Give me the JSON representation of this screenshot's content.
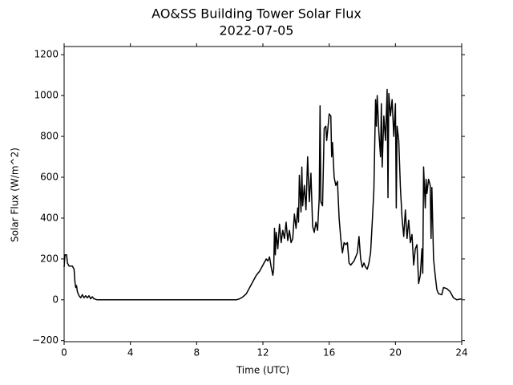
{
  "chart_data": {
    "type": "line",
    "title": "AO&SS Building Tower Solar Flux",
    "subtitle": "2022-07-05",
    "x_label": "Time (UTC)",
    "y_label": "Solar Flux (W/m^2)",
    "color": "#000000",
    "grid": false,
    "xlim": [
      0,
      24
    ],
    "xticks": [
      0,
      4,
      8,
      12,
      16,
      20,
      24
    ],
    "ylim": [
      -205,
      1240
    ],
    "yticks": [
      {
        "value": -200,
        "label": "−200"
      },
      0,
      200,
      400,
      600,
      800,
      1000,
      1200
    ],
    "x": [
      0,
      0.05,
      0.15,
      0.2,
      0.3,
      0.5,
      0.6,
      0.65,
      0.7,
      0.75,
      0.8,
      0.9,
      1.0,
      1.1,
      1.2,
      1.3,
      1.4,
      1.5,
      1.6,
      1.7,
      1.8,
      2.0,
      10.4,
      10.6,
      10.8,
      11.0,
      11.2,
      11.4,
      11.6,
      11.8,
      12.0,
      12.2,
      12.3,
      12.4,
      12.5,
      12.6,
      12.65,
      12.7,
      12.75,
      12.8,
      12.9,
      13.0,
      13.1,
      13.2,
      13.3,
      13.4,
      13.5,
      13.6,
      13.7,
      13.8,
      13.9,
      14.0,
      14.1,
      14.15,
      14.2,
      14.3,
      14.35,
      14.4,
      14.5,
      14.6,
      14.7,
      14.8,
      14.9,
      15.0,
      15.1,
      15.2,
      15.3,
      15.4,
      15.45,
      15.5,
      15.6,
      15.7,
      15.8,
      15.85,
      15.9,
      16.0,
      16.1,
      16.15,
      16.2,
      16.3,
      16.4,
      16.5,
      16.6,
      16.7,
      16.8,
      16.9,
      17.0,
      17.1,
      17.2,
      17.3,
      17.5,
      17.7,
      17.8,
      17.9,
      18.0,
      18.1,
      18.2,
      18.3,
      18.4,
      18.5,
      18.6,
      18.7,
      18.8,
      18.85,
      18.9,
      19.0,
      19.1,
      19.15,
      19.2,
      19.3,
      19.4,
      19.5,
      19.55,
      19.6,
      19.7,
      19.8,
      19.9,
      20.0,
      20.05,
      20.1,
      20.2,
      20.3,
      20.4,
      20.5,
      20.6,
      20.7,
      20.8,
      20.9,
      21.0,
      21.1,
      21.2,
      21.3,
      21.4,
      21.5,
      21.6,
      21.65,
      21.7,
      21.8,
      21.85,
      21.9,
      22.0,
      22.1,
      22.15,
      22.2,
      22.3,
      22.4,
      22.5,
      22.6,
      22.8,
      22.9,
      23.1,
      23.3,
      23.5,
      23.7,
      24.0
    ],
    "values": [
      160,
      220,
      220,
      180,
      165,
      165,
      150,
      90,
      60,
      70,
      40,
      20,
      10,
      25,
      10,
      20,
      10,
      20,
      5,
      15,
      5,
      0,
      0,
      5,
      15,
      30,
      60,
      90,
      120,
      140,
      170,
      200,
      190,
      210,
      160,
      120,
      150,
      350,
      220,
      330,
      250,
      370,
      280,
      340,
      300,
      380,
      290,
      340,
      280,
      300,
      420,
      350,
      450,
      380,
      610,
      430,
      650,
      460,
      560,
      440,
      700,
      480,
      620,
      360,
      330,
      380,
      340,
      500,
      950,
      480,
      460,
      840,
      850,
      780,
      820,
      910,
      900,
      700,
      770,
      600,
      560,
      580,
      400,
      300,
      230,
      280,
      270,
      280,
      180,
      170,
      190,
      230,
      310,
      200,
      160,
      180,
      160,
      150,
      180,
      230,
      380,
      540,
      980,
      850,
      1000,
      820,
      700,
      960,
      650,
      900,
      780,
      1030,
      500,
      1010,
      900,
      980,
      800,
      960,
      450,
      850,
      780,
      550,
      400,
      310,
      440,
      300,
      390,
      280,
      320,
      170,
      250,
      270,
      80,
      120,
      250,
      130,
      650,
      450,
      590,
      520,
      590,
      560,
      300,
      550,
      200,
      120,
      50,
      30,
      25,
      60,
      55,
      40,
      10,
      0,
      5
    ]
  }
}
